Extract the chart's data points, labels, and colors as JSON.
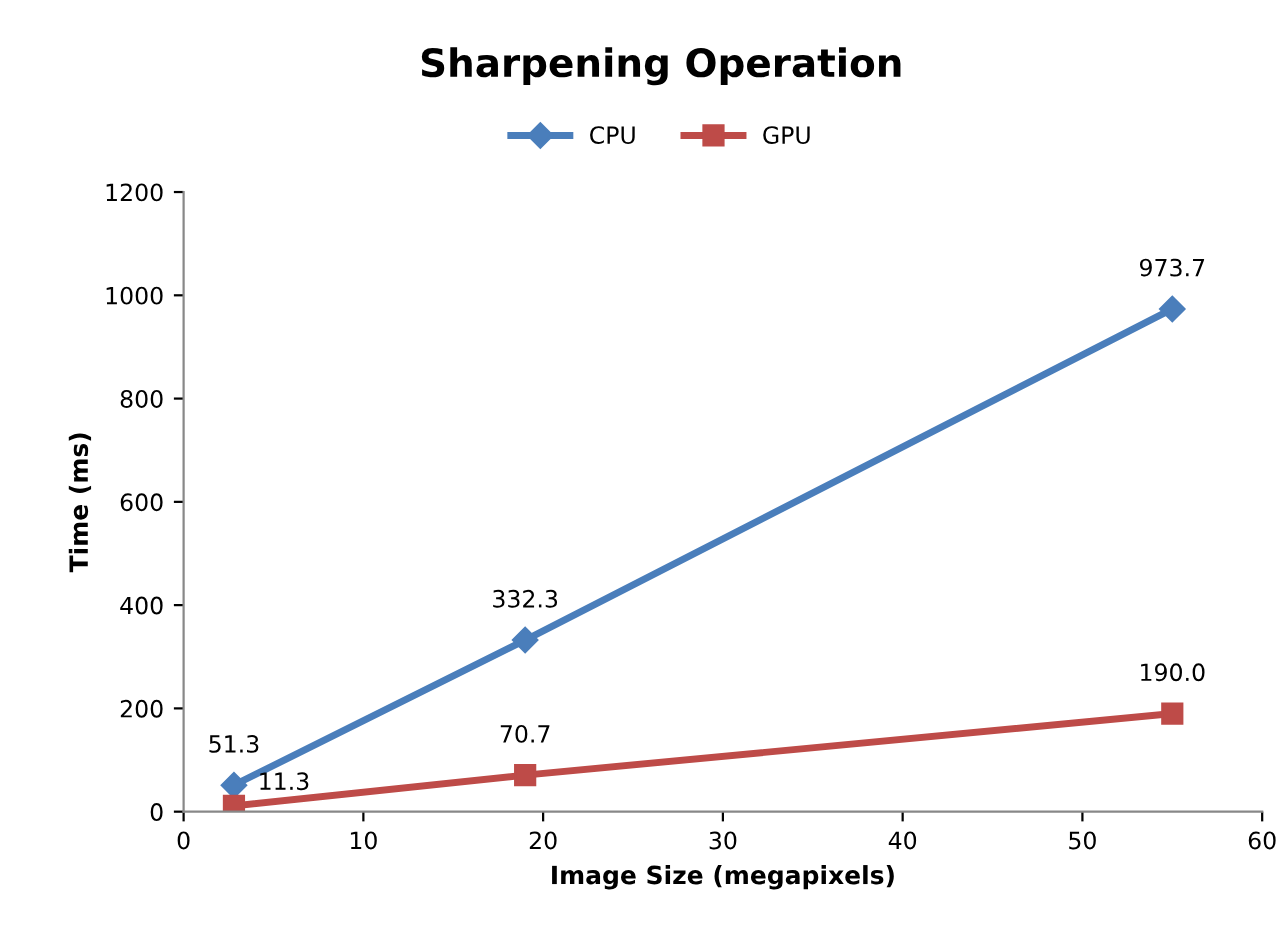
{
  "chart_data": {
    "type": "line",
    "title": "Sharpening Operation",
    "xlabel": "Image Size (megapixels)",
    "ylabel": "Time (ms)",
    "x": [
      2.8,
      19,
      55
    ],
    "series": [
      {
        "name": "CPU",
        "color": "#4a7ebb",
        "values": [
          51.3,
          332.3,
          973.7
        ],
        "value_labels": [
          "51.3",
          "332.3",
          "973.7"
        ],
        "marker": "diamond"
      },
      {
        "name": "GPU",
        "color": "#be4b48",
        "values": [
          11.3,
          70.7,
          190.0
        ],
        "value_labels": [
          "11.3",
          "70.7",
          "190.0"
        ],
        "marker": "square"
      }
    ],
    "xlim": [
      0,
      60
    ],
    "xticks": [
      0,
      10,
      20,
      30,
      40,
      50,
      60
    ],
    "ylim": [
      0,
      1200
    ],
    "yticks": [
      0,
      200,
      400,
      600,
      800,
      1000,
      1200
    ],
    "grid": false,
    "legend": "top",
    "line_style": "solid"
  }
}
